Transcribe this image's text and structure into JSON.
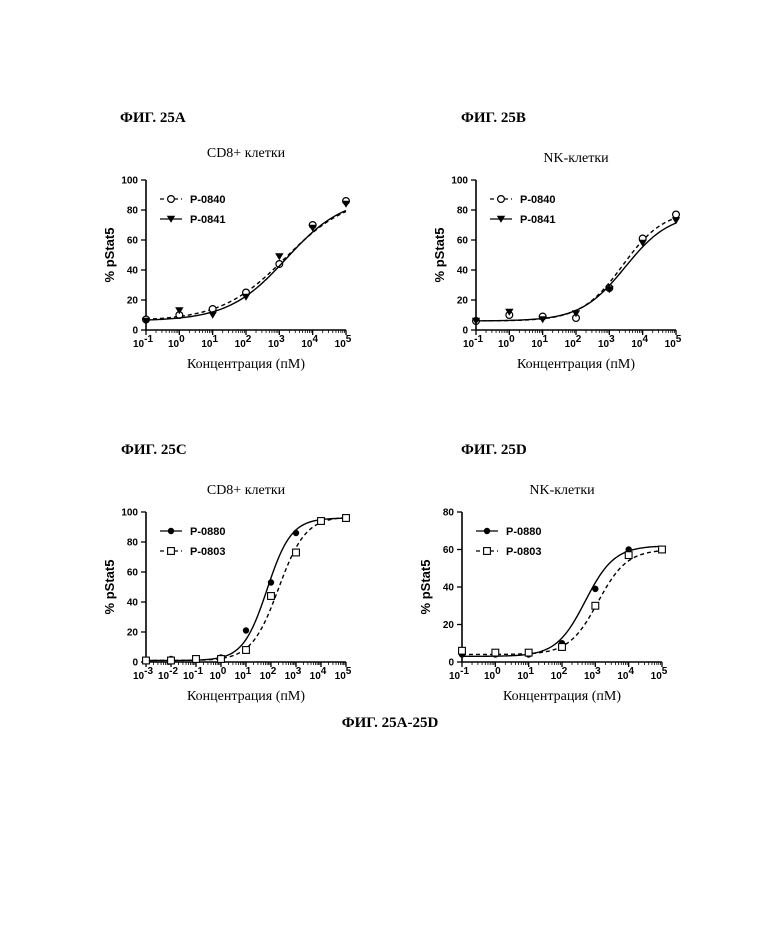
{
  "labels": {
    "fig_a": "ФИГ. 25A",
    "fig_b": "ФИГ. 25B",
    "fig_c": "ФИГ. 25C",
    "fig_d": "ФИГ. 25D",
    "caption": "ФИГ. 25A-25D"
  },
  "chart_data": [
    {
      "id": "A",
      "type": "scatter",
      "title": "CD8+ клетки",
      "xlabel": "Концентрация (пМ)",
      "ylabel": "% pStat5",
      "x_scale": "log",
      "xlim": [
        0.1,
        100000
      ],
      "ylim": [
        0,
        100
      ],
      "yticks": [
        0,
        20,
        40,
        60,
        80,
        100
      ],
      "xticks": [
        0.1,
        1,
        10,
        100,
        1000,
        10000,
        100000
      ],
      "grid": false,
      "legend": "top-left",
      "series": [
        {
          "name": "P-0840",
          "marker": "open-circle",
          "line": "dashed",
          "x": [
            0.1,
            1,
            10,
            100,
            1000,
            10000,
            100000
          ],
          "y": [
            7,
            10,
            14,
            25,
            44,
            70,
            86
          ],
          "fit": {
            "bottom": 6,
            "top": 90,
            "ec50": 1500,
            "hill": 0.45
          }
        },
        {
          "name": "P-0841",
          "marker": "filled-triangle-down",
          "line": "solid",
          "x": [
            0.1,
            1,
            10,
            100,
            1000,
            10000,
            100000
          ],
          "y": [
            6,
            13,
            10,
            22,
            49,
            68,
            84
          ],
          "fit": {
            "bottom": 6,
            "top": 89,
            "ec50": 1600,
            "hill": 0.5
          }
        }
      ]
    },
    {
      "id": "B",
      "type": "scatter",
      "title": "NK-клетки",
      "xlabel": "Концентрация (пМ)",
      "ylabel": "% pStat5",
      "x_scale": "log",
      "xlim": [
        0.1,
        100000
      ],
      "ylim": [
        0,
        100
      ],
      "yticks": [
        0,
        20,
        40,
        60,
        80,
        100
      ],
      "xticks": [
        0.1,
        1,
        10,
        100,
        1000,
        10000,
        100000
      ],
      "grid": false,
      "legend": "top-left",
      "series": [
        {
          "name": "P-0840",
          "marker": "open-circle",
          "line": "dashed",
          "x": [
            0.1,
            1,
            10,
            100,
            1000,
            10000,
            100000
          ],
          "y": [
            6,
            10,
            9,
            8,
            28,
            61,
            77
          ],
          "fit": {
            "bottom": 6,
            "top": 80,
            "ec50": 2500,
            "hill": 0.7
          }
        },
        {
          "name": "P-0841",
          "marker": "filled-triangle-down",
          "line": "solid",
          "x": [
            0.1,
            1,
            10,
            100,
            1000,
            10000,
            100000
          ],
          "y": [
            6,
            12,
            7,
            11,
            27,
            58,
            73
          ],
          "fit": {
            "bottom": 6,
            "top": 78,
            "ec50": 3000,
            "hill": 0.65
          }
        }
      ]
    },
    {
      "id": "C",
      "type": "scatter",
      "title": "CD8+ клетки",
      "xlabel": "Концентрация (пМ)",
      "ylabel": "% pStat5",
      "x_scale": "log",
      "xlim": [
        0.001,
        100000
      ],
      "ylim": [
        0,
        100
      ],
      "yticks": [
        0,
        20,
        40,
        60,
        80,
        100
      ],
      "xticks": [
        0.001,
        0.01,
        0.1,
        1,
        10,
        100,
        1000,
        10000,
        100000
      ],
      "grid": false,
      "legend": "top-left",
      "series": [
        {
          "name": "P-0880",
          "marker": "filled-circle",
          "line": "solid",
          "x": [
            0.001,
            0.01,
            0.1,
            1,
            10,
            100,
            1000,
            10000,
            100000
          ],
          "y": [
            1,
            2,
            2,
            3,
            21,
            53,
            86,
            94,
            96
          ],
          "fit": {
            "bottom": 1,
            "top": 96,
            "ec50": 70,
            "hill": 0.9
          }
        },
        {
          "name": "P-0803",
          "marker": "open-square",
          "line": "dashed",
          "x": [
            0.001,
            0.01,
            0.1,
            1,
            10,
            100,
            1000,
            10000,
            100000
          ],
          "y": [
            1,
            1,
            2,
            2,
            8,
            44,
            73,
            94,
            96
          ],
          "fit": {
            "bottom": 1,
            "top": 97,
            "ec50": 200,
            "hill": 0.8
          }
        }
      ]
    },
    {
      "id": "D",
      "type": "scatter",
      "title": "NK-клетки",
      "xlabel": "Концентрация (пМ)",
      "ylabel": "% pStat5",
      "x_scale": "log",
      "xlim": [
        0.1,
        100000
      ],
      "ylim": [
        0,
        80
      ],
      "yticks": [
        0,
        20,
        40,
        60,
        80
      ],
      "xticks": [
        0.1,
        1,
        10,
        100,
        1000,
        10000,
        100000
      ],
      "grid": false,
      "legend": "top-left",
      "series": [
        {
          "name": "P-0880",
          "marker": "filled-circle",
          "line": "solid",
          "x": [
            0.1,
            1,
            10,
            100,
            1000,
            10000,
            100000
          ],
          "y": [
            4,
            4,
            4,
            10,
            39,
            60,
            60
          ],
          "fit": {
            "bottom": 3,
            "top": 62,
            "ec50": 500,
            "hill": 1.0
          }
        },
        {
          "name": "P-0803",
          "marker": "open-square",
          "line": "dashed",
          "x": [
            0.1,
            1,
            10,
            100,
            1000,
            10000,
            100000
          ],
          "y": [
            6,
            5,
            5,
            8,
            30,
            57,
            60
          ],
          "fit": {
            "bottom": 4,
            "top": 60,
            "ec50": 1200,
            "hill": 1.0
          }
        }
      ]
    }
  ]
}
